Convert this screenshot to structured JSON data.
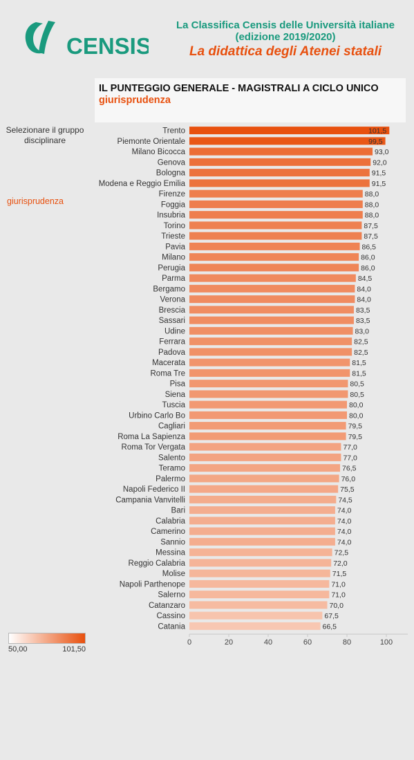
{
  "header": {
    "logo_text": "CENSIS",
    "title_line1": "La Classifica Censis delle Università italiane",
    "title_line2": "(edizione 2019/2020)",
    "subtitle": "La didattica degli Atenei statali"
  },
  "panel": {
    "title": "IL PUNTEGGIO GENERALE - MAGISTRALI A CICLO UNICO",
    "subtitle": "giurisprudenza"
  },
  "filter": {
    "label": "Selezionare il gruppo disciplinare",
    "value": "giurisprudenza"
  },
  "color_legend": {
    "min_label": "50,00",
    "max_label": "101,50",
    "min": 50.0,
    "max": 101.5,
    "color_low": "#ffffff",
    "color_high": "#e8500e"
  },
  "chart_data": {
    "type": "bar",
    "orientation": "horizontal",
    "categories": [
      "Trento",
      "Piemonte Orientale",
      "Milano Bicocca",
      "Genova",
      "Bologna",
      "Modena e Reggio Emilia",
      "Firenze",
      "Foggia",
      "Insubria",
      "Torino",
      "Trieste",
      "Pavia",
      "Milano",
      "Perugia",
      "Parma",
      "Bergamo",
      "Verona",
      "Brescia",
      "Sassari",
      "Udine",
      "Ferrara",
      "Padova",
      "Macerata",
      "Roma Tre",
      "Pisa",
      "Siena",
      "Tuscia",
      "Urbino Carlo Bo",
      "Cagliari",
      "Roma La Sapienza",
      "Roma Tor Vergata",
      "Salento",
      "Teramo",
      "Palermo",
      "Napoli Federico II",
      "Campania Vanvitelli",
      "Bari",
      "Calabria",
      "Camerino",
      "Sannio",
      "Messina",
      "Reggio Calabria",
      "Molise",
      "Napoli Parthenope",
      "Salerno",
      "Catanzaro",
      "Cassino",
      "Catania"
    ],
    "values": [
      101.5,
      99.5,
      93.0,
      92.0,
      91.5,
      91.5,
      88.0,
      88.0,
      88.0,
      87.5,
      87.5,
      86.5,
      86.0,
      86.0,
      84.5,
      84.0,
      84.0,
      83.5,
      83.5,
      83.0,
      82.5,
      82.5,
      81.5,
      81.5,
      80.5,
      80.5,
      80.0,
      80.0,
      79.5,
      79.5,
      77.0,
      77.0,
      76.5,
      76.0,
      75.5,
      74.5,
      74.0,
      74.0,
      74.0,
      74.0,
      72.5,
      72.0,
      71.5,
      71.0,
      71.0,
      70.0,
      67.5,
      66.5
    ],
    "value_labels": [
      "101,5",
      "99,5",
      "93,0",
      "92,0",
      "91,5",
      "91,5",
      "88,0",
      "88,0",
      "88,0",
      "87,5",
      "87,5",
      "86,5",
      "86,0",
      "86,0",
      "84,5",
      "84,0",
      "84,0",
      "83,5",
      "83,5",
      "83,0",
      "82,5",
      "82,5",
      "81,5",
      "81,5",
      "80,5",
      "80,5",
      "80,0",
      "80,0",
      "79,5",
      "79,5",
      "77,0",
      "77,0",
      "76,5",
      "76,0",
      "75,5",
      "74,5",
      "74,0",
      "74,0",
      "74,0",
      "74,0",
      "72,5",
      "72,0",
      "71,5",
      "71,0",
      "71,0",
      "70,0",
      "67,5",
      "66,5"
    ],
    "x_ticks": [
      0,
      20,
      40,
      60,
      80,
      100
    ],
    "xlim": [
      0,
      110
    ],
    "grid": false,
    "legend": "bottom-left"
  }
}
